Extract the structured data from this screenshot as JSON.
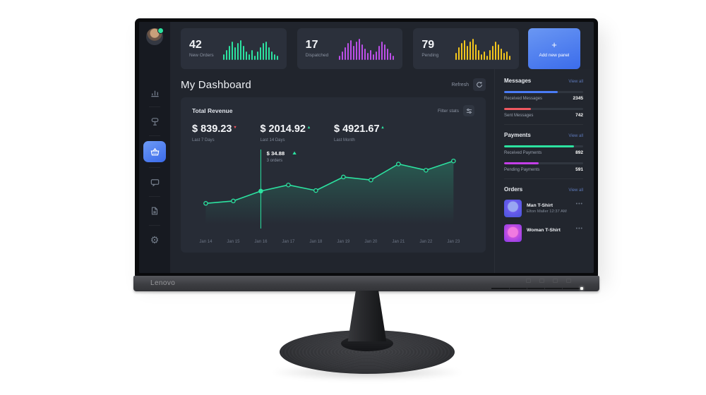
{
  "monitor": {
    "brand": "Lenovo"
  },
  "screen": {
    "topbar": {
      "stats": [
        {
          "value": "42",
          "label": "New Orders",
          "color": "#2ce2a0"
        },
        {
          "value": "17",
          "label": "Dispatched",
          "color": "#bb4fe8"
        },
        {
          "value": "79",
          "label": "Pending",
          "color": "#f2c51d"
        }
      ],
      "add_panel": {
        "icon": "plus-icon",
        "label": "Add new panel",
        "color": "#3b6ceb"
      }
    },
    "header": {
      "title": "My Dashboard",
      "refresh_label": "Refresh",
      "refresh_icon": "refresh-icon"
    },
    "revenue": {
      "title": "Total Revenue",
      "filter_label": "Filter stats",
      "figures": [
        {
          "amount": "$ 839.23",
          "trend": "down",
          "period": "Last 7 Days"
        },
        {
          "amount": "$ 2014.92",
          "trend": "up",
          "period": "Last 14 Days"
        },
        {
          "amount": "$ 4921.67",
          "trend": "up",
          "period": "Last Month"
        }
      ]
    },
    "sidebar": {
      "sections": [
        {
          "title": "Messages",
          "link": "View all",
          "rows": [
            {
              "label": "Received Messages",
              "value": "2345",
              "bar_color": "#4a7cf6",
              "bar_pct": 68
            },
            {
              "label": "Sent Messages",
              "value": "742",
              "bar_color": "#ef5860",
              "bar_pct": 34
            }
          ]
        },
        {
          "title": "Payments",
          "link": "View all",
          "rows": [
            {
              "label": "Received Payments",
              "value": "892",
              "bar_color": "#2ce2a0",
              "bar_pct": 88
            },
            {
              "label": "Pending Payments",
              "value": "591",
              "bar_color": "#c43fe8",
              "bar_pct": 44
            }
          ]
        },
        {
          "title": "Orders",
          "link": "View all",
          "items": [
            {
              "name": "Man T-Shirt",
              "meta": "Elton Maller    12:37 AM"
            },
            {
              "name": "Woman T-Shirt",
              "meta": ""
            }
          ]
        }
      ]
    }
  },
  "chart_data": [
    {
      "type": "line",
      "title": "Total Revenue trend",
      "x": [
        "Jan 14",
        "Jan 15",
        "Jan 16",
        "Jan 17",
        "Jan 18",
        "Jan 19",
        "Jan 20",
        "Jan 21",
        "Jan 22",
        "Jan 23"
      ],
      "values": [
        22,
        24.5,
        34.88,
        41.3,
        35.5,
        49.7,
        46.5,
        63.3,
        56.8,
        66.5
      ],
      "unit": "$",
      "ylim": [
        0,
        90
      ],
      "grid": false,
      "legend": "none",
      "line_color": "#2ce2a0",
      "area_fill": "teal-gradient",
      "highlight": {
        "index": 2,
        "x": "Jan 16",
        "label": "$ 34.88",
        "sub": "3 orders",
        "trend": "up"
      }
    },
    {
      "type": "bar",
      "title": "New Orders sparkline",
      "color": "#2ce2a0",
      "values": [
        8,
        14,
        20,
        26,
        18,
        24,
        28,
        20,
        12,
        8,
        14,
        6,
        12,
        18,
        24,
        26,
        18,
        12,
        8,
        6
      ]
    },
    {
      "type": "bar",
      "title": "Dispatched sparkline",
      "color": "#bb4fe8",
      "values": [
        6,
        12,
        18,
        24,
        28,
        20,
        26,
        30,
        22,
        16,
        10,
        14,
        8,
        12,
        20,
        26,
        22,
        16,
        10,
        6
      ]
    },
    {
      "type": "bar",
      "title": "Pending sparkline",
      "color": "#f2c51d",
      "values": [
        10,
        18,
        24,
        28,
        20,
        26,
        30,
        22,
        14,
        8,
        12,
        6,
        14,
        20,
        26,
        22,
        16,
        10,
        12,
        6
      ]
    }
  ]
}
